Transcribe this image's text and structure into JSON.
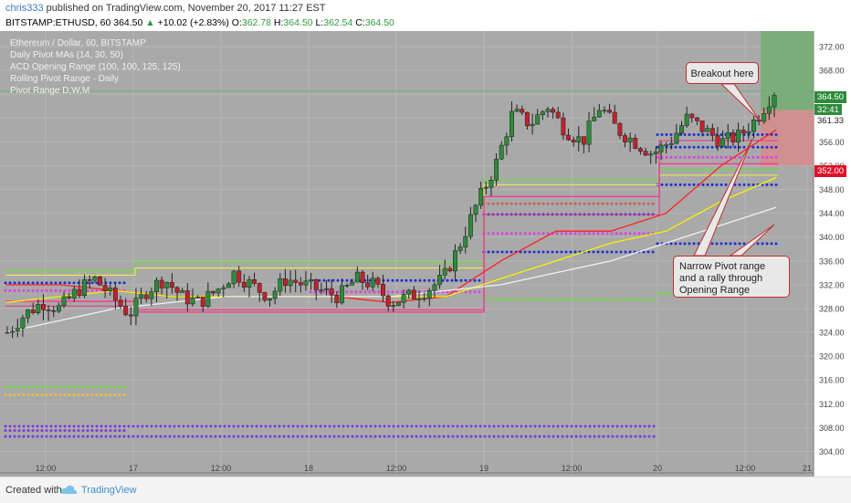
{
  "header": {
    "author": "chris333",
    "published": "published on TradingView.com, November 20, 2017 11:27 EST",
    "symbol": "BITSTAMP:ETHUSD, 60",
    "last": "364.50",
    "change": "+10.02 (+2.83%)",
    "o_label": "O:",
    "o": "362.78",
    "h_label": "H:",
    "h": "364.50",
    "l_label": "L:",
    "l": "362.54",
    "c_label": "C:",
    "c": "364.50"
  },
  "legend": [
    "Ethereum / Dollar, 60, BITSTAMP",
    "Daily Pivot MAs (14, 30, 50)",
    "ACD Opening Range (100, 100, 125, 125)",
    "Rolling Pivot Range - Daily",
    "Pivot Range D,W,M"
  ],
  "price_tags": {
    "last": "364.50",
    "countdown": "32:41",
    "level1": "361.33",
    "level2": "352.00"
  },
  "annotations": {
    "breakout": "Breakout here",
    "narrow": "Narrow Pivot range and a rally through Opening Range"
  },
  "footer": {
    "created_with": "Created with",
    "brand": "TradingView"
  },
  "colors": {
    "background": "#a9a9a9",
    "up": "#2e8b3a",
    "down": "#c0222a",
    "ma_red": "#ff2020",
    "ma_yellow": "#f4f400",
    "ma_white": "#f0f0f0",
    "pivot_pink": "#ff3a8a",
    "pivot_green": "#6dde3a",
    "dot_blue": "#1f2fd6",
    "dot_magenta": "#e040e0",
    "dot_purple": "#7a3ae0"
  },
  "chart_data": {
    "type": "candlestick",
    "x_ticks": [
      "12:00",
      "17",
      "12:00",
      "18",
      "12:00",
      "19",
      "12:00",
      "20",
      "12:00",
      "21"
    ],
    "y_ticks": [
      304,
      308,
      312,
      316,
      320,
      324,
      328,
      332,
      336,
      340,
      344,
      348,
      352,
      356,
      360,
      364,
      368,
      372
    ],
    "ylim": [
      301,
      374
    ],
    "series": [
      {
        "name": "price_ohlc_approx",
        "close_path": [
          324,
          327,
          329,
          328,
          331,
          333,
          330,
          327,
          331,
          333,
          330,
          329,
          331,
          334,
          332,
          330,
          333,
          332,
          331,
          330,
          333,
          332,
          329,
          330,
          331,
          333,
          339,
          346,
          352,
          361,
          359,
          362,
          358,
          356,
          362,
          358,
          356,
          354,
          356,
          360,
          358,
          356,
          357,
          360,
          364.5
        ]
      }
    ],
    "moving_averages": [
      {
        "color": "ma_red",
        "values": [
          332,
          332,
          331,
          330,
          330,
          330,
          330,
          329,
          330,
          336,
          341,
          341,
          344,
          352,
          358
        ]
      },
      {
        "color": "ma_yellow",
        "values": [
          329,
          330,
          331,
          330,
          330,
          330,
          330,
          330,
          330,
          333,
          336,
          339,
          341,
          346,
          350
        ]
      },
      {
        "color": "ma_white",
        "values": [
          324,
          326,
          328,
          329,
          330,
          330,
          330,
          330,
          331,
          332,
          334,
          336,
          339,
          342,
          345
        ]
      }
    ]
  }
}
